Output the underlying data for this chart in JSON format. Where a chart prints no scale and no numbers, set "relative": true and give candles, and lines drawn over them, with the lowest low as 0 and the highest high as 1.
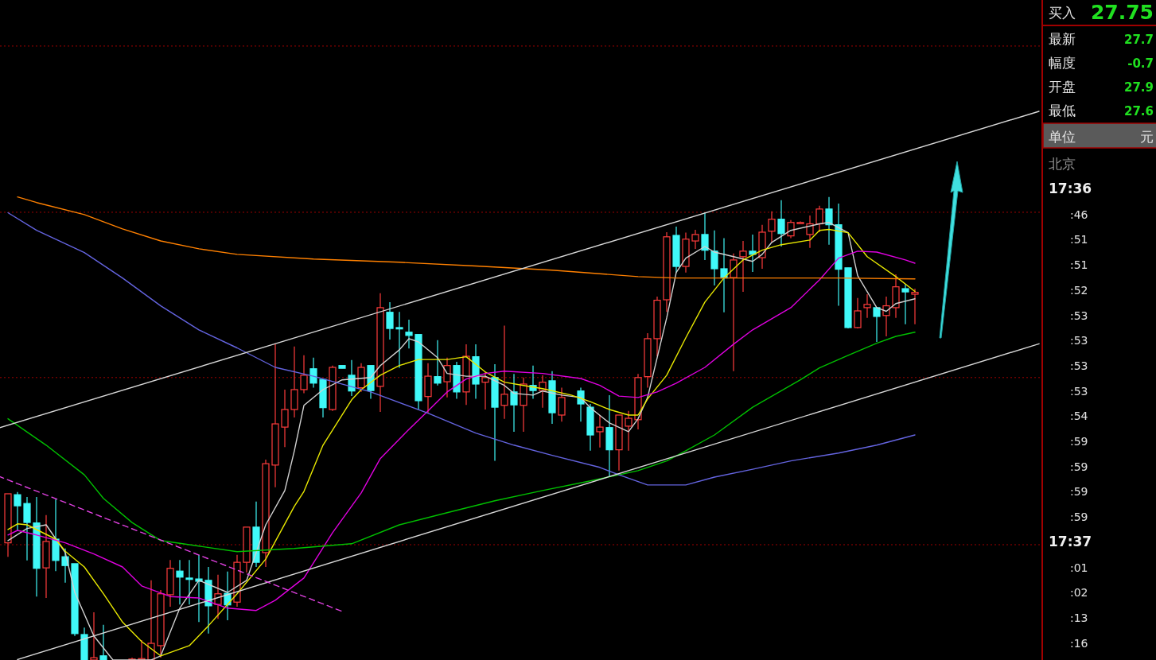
{
  "chart_data": [
    {
      "type": "candlestick",
      "relative": true,
      "categories": [
        null,
        null,
        null,
        null,
        null,
        null,
        null,
        null,
        null,
        null,
        null,
        null,
        null,
        null,
        null,
        null,
        null,
        null,
        null,
        null,
        null,
        null,
        null,
        null,
        null,
        null,
        null,
        null,
        null,
        null,
        null,
        null,
        null,
        null,
        null,
        null,
        null,
        null,
        null,
        null,
        null,
        null,
        null,
        null,
        null,
        null,
        null,
        null,
        null,
        null,
        null,
        null,
        null,
        null,
        null,
        null,
        null,
        null,
        null,
        null,
        null,
        null,
        null,
        null,
        null,
        null,
        null,
        null,
        null,
        null,
        null,
        null,
        null,
        null,
        null,
        null,
        null,
        null,
        null,
        null,
        null,
        null,
        null,
        null,
        null,
        null,
        null,
        null,
        null,
        null,
        null,
        null,
        null,
        null,
        null,
        null,
        null,
        null,
        null,
        null,
        null,
        null,
        null,
        null,
        null,
        null,
        null,
        null,
        null,
        null
      ],
      "ohlc": [
        null,
        [
          0.253,
          0.359,
          0.223,
          0.359
        ],
        [
          0.357,
          0.363,
          0.28,
          0.333
        ],
        [
          0.338,
          0.352,
          0.215,
          0.297
        ],
        [
          0.296,
          0.352,
          0.137,
          0.198
        ],
        [
          0.199,
          0.313,
          0.134,
          0.256
        ],
        [
          0.261,
          0.347,
          0.192,
          0.215
        ],
        [
          0.223,
          0.241,
          0.167,
          0.204
        ],
        [
          0.208,
          0.208,
          0.052,
          0.057
        ],
        [
          0.055,
          0.07,
          0,
          0
        ],
        [
          0,
          0.103,
          0,
          0.005
        ],
        [
          0.009,
          0.076,
          0,
          0
        ],
        null,
        null,
        [
          0,
          0.005,
          0,
          0.002
        ],
        [
          0,
          0.043,
          0,
          0.003
        ],
        [
          0,
          0.172,
          0,
          0.036
        ],
        [
          0.031,
          0.151,
          0.005,
          0.143
        ],
        [
          0.141,
          0.216,
          0.115,
          0.198
        ],
        [
          0.192,
          0.216,
          0.12,
          0.179
        ],
        [
          0.177,
          0.216,
          0.12,
          0.174
        ],
        [
          0.175,
          0.227,
          0.082,
          0.17
        ],
        [
          0.172,
          0.201,
          0.057,
          0.117
        ],
        [
          0.12,
          0.184,
          0.089,
          0.143
        ],
        [
          0.144,
          0.191,
          0.086,
          0.119
        ],
        [
          0.125,
          0.227,
          0.115,
          0.211
        ],
        [
          0.211,
          0.287,
          0.189,
          0.287
        ],
        [
          0.287,
          0.342,
          0.201,
          0.211
        ],
        [
          0.232,
          0.433,
          0.201,
          0.424
        ],
        [
          0.421,
          0.682,
          0.373,
          0.51
        ],
        [
          0.503,
          0.584,
          0.46,
          0.541
        ],
        [
          0.541,
          0.677,
          0.524,
          0.584
        ],
        [
          0.584,
          0.658,
          0.576,
          0.615
        ],
        [
          0.629,
          0.653,
          0.588,
          0.598
        ],
        [
          0.606,
          0.606,
          0.524,
          0.545
        ],
        [
          0.541,
          0.636,
          0.538,
          0.632
        ],
        [
          0.636,
          0.636,
          0.63,
          0.63
        ],
        [
          0.615,
          0.648,
          0.57,
          0.581
        ],
        [
          0.588,
          0.641,
          0.579,
          0.632
        ],
        [
          0.636,
          0.636,
          0.564,
          0.582
        ],
        [
          0.591,
          0.792,
          0.536,
          0.761
        ],
        [
          0.751,
          0.773,
          0.692,
          0.716
        ],
        [
          0.718,
          0.752,
          0.631,
          0.715
        ],
        [
          0.708,
          0.735,
          0.673,
          0.701
        ],
        [
          0.703,
          0.703,
          0.541,
          0.56
        ],
        [
          0.569,
          0.641,
          0.533,
          0.613
        ],
        [
          0.612,
          0.691,
          0.593,
          0.598
        ],
        [
          0.601,
          0.653,
          0.567,
          0.636
        ],
        [
          0.636,
          0.644,
          0.564,
          0.579
        ],
        [
          0.579,
          0.682,
          0.551,
          0.656
        ],
        [
          0.655,
          0.682,
          0.564,
          0.596
        ],
        [
          0.6,
          0.622,
          0.541,
          0.61
        ],
        [
          0.61,
          0.639,
          0.43,
          0.546
        ],
        [
          0.55,
          0.722,
          0.521,
          0.574
        ],
        [
          0.579,
          0.618,
          0.493,
          0.551
        ],
        [
          0.55,
          0.61,
          0.493,
          0.596
        ],
        [
          0.593,
          0.636,
          0.564,
          0.582
        ],
        [
          0.582,
          0.615,
          0.545,
          0.6
        ],
        [
          0.603,
          0.624,
          0.51,
          0.534
        ],
        [
          0.529,
          0.588,
          0.515,
          0.567
        ],
        null,
        [
          0.581,
          0.588,
          0.515,
          0.553
        ],
        [
          0.546,
          0.553,
          0.452,
          0.486
        ],
        [
          0.493,
          0.529,
          0.459,
          0.503
        ],
        [
          0.502,
          0.572,
          0.395,
          0.454
        ],
        [
          0.454,
          0.529,
          0.409,
          0.529
        ],
        [
          0.505,
          0.538,
          0.452,
          0.522
        ],
        [
          0.519,
          0.618,
          0.498,
          0.61
        ],
        [
          0.612,
          0.706,
          0.588,
          0.694
        ],
        [
          0.694,
          0.785,
          0.656,
          0.777
        ],
        [
          0.778,
          0.924,
          0.752,
          0.914
        ],
        [
          0.917,
          0.936,
          0.837,
          0.85
        ],
        [
          0.85,
          0.923,
          0.837,
          0.909
        ],
        [
          0.905,
          0.929,
          0.888,
          0.919
        ],
        [
          0.919,
          0.967,
          0.864,
          0.885
        ],
        [
          0.883,
          0.928,
          0.809,
          0.845
        ],
        [
          0.845,
          0.911,
          0.751,
          0.825
        ],
        [
          0.826,
          0.878,
          0.624,
          0.864
        ],
        [
          0.871,
          0.905,
          0.795,
          0.883
        ],
        [
          0.883,
          0.919,
          0.838,
          0.876
        ],
        [
          0.869,
          0.94,
          0.845,
          0.924
        ],
        [
          0.926,
          0.969,
          0.902,
          0.952
        ],
        [
          0.952,
          0.993,
          0.893,
          0.921
        ],
        [
          0.916,
          0.95,
          0.911,
          0.945
        ],
        [
          0.945,
          0.947,
          0.943,
          0.945
        ],
        [
          0.919,
          0.96,
          0.89,
          0.942
        ],
        [
          0.942,
          0.981,
          0.924,
          0.974
        ],
        [
          0.974,
          1,
          0.897,
          0.94
        ],
        [
          0.94,
          0.986,
          0.765,
          0.844
        ],
        [
          0.847,
          0.847,
          0.716,
          0.718
        ],
        [
          0.718,
          0.782,
          0.716,
          0.754
        ],
        [
          0.761,
          0.79,
          0.739,
          0.768
        ],
        [
          0.761,
          0.761,
          0.687,
          0.742
        ],
        [
          0.744,
          0.785,
          0.699,
          0.765
        ],
        [
          0.761,
          0.833,
          0.739,
          0.806
        ],
        [
          0.802,
          0.811,
          0.725,
          0.795
        ],
        [
          0.79,
          0.802,
          0.725,
          0.794
        ],
        null,
        null,
        null,
        null,
        null,
        null,
        null,
        null,
        null,
        null,
        null,
        null,
        null
      ],
      "series": [
        {
          "type": "line",
          "color": "#d0d0d0",
          "values": [
            null,
            0.258,
            null,
            0.284,
            null,
            0.292,
            null,
            0.232,
            0.146,
            null,
            0.052,
            null,
            0,
            0,
            0,
            0,
            0,
            0.009,
            null,
            0.112,
            null,
            0.172,
            null,
            null,
            0.146,
            null,
            0.172,
            null,
            0.292,
            null,
            0.366,
            0.452,
            0.55,
            null,
            0.584,
            null,
            0.605,
            null,
            null,
            0.61,
            0.636,
            null,
            0.67,
            0.694,
            0.687,
            null,
            0.653,
            0.619,
            null,
            0.613,
            null,
            0.613,
            null,
            0.593,
            0.576,
            null,
            0.572,
            0.581,
            null,
            0.572,
            null,
            0.567,
            0.545,
            null,
            0.512,
            null,
            0.493,
            0.521,
            0.567,
            0.653,
            0.739,
            0.837,
            0.868,
            null,
            0.893,
            0.881,
            null,
            0.871,
            null,
            0.861,
            0.876,
            0.902,
            null,
            0.928,
            null,
            null,
            0.942,
            0.945,
            null,
            0.923,
            0.83,
            null,
            0.761,
            0.753,
            0.77,
            null,
            0.78,
            null,
            null,
            null,
            null,
            null,
            null,
            null,
            null,
            null,
            null,
            null,
            null,
            null
          ]
        },
        {
          "type": "line",
          "color": "#e8e800",
          "values": [
            null,
            0.282,
            0.294,
            0.292,
            null,
            null,
            0.261,
            0.235,
            null,
            0.201,
            null,
            0.143,
            null,
            0.082,
            null,
            0.04,
            null,
            0.009,
            null,
            null,
            0.031,
            null,
            0.074,
            null,
            null,
            0.143,
            null,
            null,
            0.218,
            null,
            null,
            0.332,
            0.364,
            null,
            0.464,
            null,
            null,
            0.562,
            0.584,
            null,
            0.615,
            null,
            0.636,
            null,
            0.649,
            null,
            null,
            0.649,
            null,
            0.655,
            null,
            0.622,
            null,
            0.6,
            null,
            0.593,
            null,
            0.586,
            null,
            null,
            0.572,
            null,
            0.558,
            null,
            0.541,
            null,
            0.529,
            0.529,
            0.564,
            null,
            0.615,
            null,
            0.696,
            null,
            0.773,
            null,
            0.825,
            null,
            0.864,
            null,
            0.885,
            null,
            0.897,
            null,
            null,
            0.907,
            0.928,
            0.93,
            null,
            0.923,
            null,
            0.871,
            null,
            null,
            0.828,
            null,
            0.796,
            null,
            null,
            null,
            null,
            null,
            null,
            null,
            null,
            null,
            null,
            null,
            null,
            null
          ]
        },
        {
          "type": "line",
          "color": "#e000e0",
          "values": [
            null,
            0.27,
            0.28,
            null,
            0.27,
            null,
            null,
            0.253,
            null,
            null,
            0.229,
            null,
            null,
            0.201,
            null,
            0.16,
            null,
            null,
            0.137,
            null,
            null,
            0.134,
            null,
            null,
            0.112,
            null,
            null,
            0.107,
            null,
            0.129,
            null,
            null,
            0.177,
            null,
            null,
            0.275,
            null,
            null,
            0.361,
            null,
            0.435,
            null,
            null,
            0.498,
            null,
            0.538,
            null,
            0.579,
            null,
            0.607,
            null,
            0.619,
            null,
            0.624,
            null,
            null,
            null,
            0.619,
            null,
            null,
            null,
            0.608,
            null,
            0.593,
            null,
            0.57,
            null,
            0.567,
            null,
            0.579,
            null,
            0.598,
            null,
            null,
            0.632,
            null,
            null,
            0.682,
            null,
            0.713,
            null,
            null,
            null,
            0.761,
            null,
            null,
            0.821,
            null,
            0.868,
            null,
            0.883,
            null,
            0.881,
            null,
            null,
            0.864,
            0.857,
            null,
            null,
            null,
            null,
            null,
            null,
            null,
            null,
            null,
            null,
            null,
            null,
            null
          ]
        },
        {
          "type": "line",
          "color": "#00c000",
          "values": [
            null,
            0.521,
            null,
            null,
            null,
            0.464,
            null,
            null,
            null,
            0.4,
            null,
            0.349,
            null,
            null,
            0.297,
            null,
            null,
            0.258,
            null,
            null,
            null,
            0.246,
            null,
            null,
            null,
            0.234,
            null,
            null,
            null,
            null,
            null,
            0.241,
            null,
            null,
            null,
            null,
            null,
            0.251,
            null,
            null,
            null,
            null,
            0.292,
            null,
            null,
            null,
            null,
            0.318,
            null,
            null,
            null,
            null,
            0.344,
            null,
            null,
            null,
            null,
            0.366,
            null,
            null,
            null,
            null,
            0.387,
            null,
            null,
            null,
            null,
            0.409,
            null,
            null,
            0.43,
            null,
            0.452,
            null,
            null,
            0.486,
            null,
            null,
            null,
            0.546,
            null,
            null,
            null,
            null,
            0.605,
            null,
            0.631,
            null,
            null,
            0.658,
            null,
            null,
            0.684,
            null,
            0.699,
            null,
            0.708,
            null,
            null,
            null,
            null,
            null,
            null,
            null,
            null,
            null,
            null,
            null,
            null,
            null
          ]
        },
        {
          "type": "line",
          "color": "#6464e0",
          "values": [
            null,
            0.966,
            null,
            null,
            0.928,
            null,
            null,
            null,
            null,
            0.88,
            null,
            null,
            null,
            0.825,
            null,
            null,
            null,
            0.765,
            null,
            null,
            null,
            0.713,
            null,
            null,
            null,
            0.674,
            null,
            null,
            null,
            0.632,
            null,
            null,
            null,
            0.613,
            null,
            null,
            null,
            null,
            null,
            0.579,
            null,
            null,
            null,
            null,
            null,
            0.533,
            null,
            null,
            null,
            null,
            0.49,
            null,
            null,
            null,
            0.464,
            null,
            null,
            null,
            0.442,
            null,
            null,
            null,
            null,
            0.416,
            null,
            0.4,
            null,
            null,
            0.378,
            null,
            null,
            null,
            0.378,
            null,
            null,
            0.395,
            null,
            null,
            null,
            0.412,
            null,
            null,
            null,
            0.43,
            null,
            null,
            null,
            null,
            0.447,
            null,
            null,
            null,
            0.464,
            null,
            null,
            null,
            0.486,
            null,
            null,
            null,
            null,
            null,
            null,
            null,
            null,
            null,
            null,
            null,
            null,
            null
          ]
        },
        {
          "type": "line",
          "color": "#ff8000",
          "values": [
            null,
            null,
            1,
            null,
            0.988,
            null,
            null,
            null,
            null,
            0.962,
            null,
            null,
            null,
            0.931,
            null,
            null,
            null,
            0.905,
            null,
            null,
            null,
            0.888,
            null,
            null,
            null,
            0.876,
            null,
            null,
            null,
            null,
            null,
            null,
            null,
            0.866,
            null,
            null,
            null,
            null,
            null,
            null,
            null,
            null,
            0.859,
            null,
            null,
            null,
            null,
            null,
            null,
            null,
            0.851,
            null,
            null,
            null,
            null,
            null,
            null,
            null,
            0.842,
            null,
            null,
            null,
            null,
            null,
            null,
            null,
            null,
            0.828,
            null,
            null,
            null,
            0.825,
            null,
            null,
            null,
            null,
            null,
            null,
            null,
            0.825,
            null,
            null,
            null,
            null,
            null,
            null,
            null,
            null,
            0.825,
            null,
            null,
            null,
            null,
            null,
            null,
            null,
            0.823,
            null,
            null,
            null,
            null,
            null,
            null,
            null,
            null,
            null,
            null,
            null,
            null,
            null
          ]
        },
        {
          "type": "line",
          "color": "#d8d8d8",
          "values": [
            0.501,
            null,
            null,
            null,
            null,
            null,
            null,
            null,
            null,
            null,
            null,
            null,
            null,
            null,
            null,
            null,
            null,
            null,
            null,
            null,
            null,
            null,
            null,
            null,
            null,
            null,
            null,
            null,
            null,
            null,
            null,
            null,
            null,
            null,
            null,
            null,
            null,
            null,
            null,
            null,
            null,
            null,
            null,
            null,
            null,
            null,
            null,
            null,
            null,
            null,
            null,
            null,
            null,
            null,
            null,
            null,
            null,
            null,
            null,
            null,
            null,
            null,
            null,
            null,
            null,
            null,
            null,
            null,
            null,
            null,
            null,
            null,
            null,
            null,
            null,
            null,
            null,
            null,
            null,
            null,
            null,
            null,
            null,
            null,
            null,
            null,
            null,
            null,
            null,
            null,
            null,
            null,
            null,
            null,
            null,
            null,
            null,
            null,
            null,
            null,
            null,
            null,
            null,
            null,
            null,
            null,
            null,
            null,
            null,
            1.185
          ]
        },
        {
          "type": "line",
          "color": "#d8d8d8",
          "values": [
            null,
            null,
            0.001,
            null,
            null,
            null,
            null,
            null,
            null,
            null,
            null,
            null,
            null,
            null,
            null,
            null,
            null,
            null,
            null,
            null,
            null,
            null,
            null,
            null,
            null,
            null,
            null,
            null,
            null,
            null,
            null,
            null,
            null,
            null,
            null,
            null,
            null,
            null,
            null,
            null,
            null,
            null,
            null,
            null,
            null,
            null,
            null,
            null,
            null,
            null,
            null,
            null,
            null,
            null,
            null,
            null,
            null,
            null,
            null,
            null,
            null,
            null,
            null,
            null,
            null,
            null,
            null,
            null,
            null,
            null,
            null,
            null,
            null,
            null,
            null,
            null,
            null,
            null,
            null,
            null,
            null,
            null,
            null,
            null,
            null,
            null,
            null,
            null,
            null,
            null,
            null,
            null,
            null,
            null,
            null,
            null,
            null,
            null,
            null,
            null,
            null,
            null,
            null,
            null,
            null,
            null,
            null,
            null,
            null,
            0.683
          ]
        },
        {
          "type": "line",
          "color": "#e040e0",
          "line_style": "dashed",
          "values": [
            0.397,
            null,
            null,
            null,
            null,
            null,
            null,
            null,
            null,
            null,
            null,
            null,
            null,
            null,
            null,
            null,
            null,
            null,
            null,
            null,
            null,
            null,
            null,
            null,
            null,
            null,
            null,
            null,
            null,
            null,
            null,
            null,
            null,
            null,
            null,
            null,
            0.105,
            null,
            null,
            null,
            null,
            null,
            null,
            null,
            null,
            null,
            null,
            null,
            null,
            null,
            null,
            null,
            null,
            null,
            null,
            null,
            null,
            null,
            null,
            null,
            null,
            null,
            null,
            null,
            null,
            null,
            null,
            null,
            null,
            null,
            null,
            null,
            null,
            null,
            null,
            null,
            null,
            null,
            null,
            null,
            null,
            null,
            null,
            null,
            null,
            null,
            null,
            null,
            null,
            null,
            null,
            null,
            null,
            null,
            null,
            null,
            null,
            null,
            null,
            null,
            null,
            null,
            null,
            null,
            null,
            null,
            null,
            null,
            null,
            null
          ]
        }
      ],
      "ref_lines": [
        {
          "axis": "y",
          "value": 1.326,
          "color": "#a00000",
          "line_style": "dotted"
        },
        {
          "axis": "y",
          "value": 0.967,
          "color": "#a00000",
          "line_style": "dotted"
        },
        {
          "axis": "y",
          "value": 0.61,
          "color": "#a00000",
          "line_style": "dotted"
        },
        {
          "axis": "y",
          "value": 0.249,
          "color": "#a00000",
          "line_style": "dotted"
        }
      ]
    },
    {
      "type": "other",
      "annotations": [
        "买入",
        "27.75",
        "最新",
        "27.7",
        "幅度",
        "-0.7",
        "开盘",
        "27.9",
        "最低",
        "27.6",
        "单位",
        "元",
        "北京",
        "17:36",
        ":46",
        ":51",
        ":51",
        ":52",
        ":53",
        ":53",
        ":53",
        ":53",
        ":54",
        ":59",
        ":59",
        ":59",
        ":59",
        "17:37",
        ":01",
        ":02",
        ":13",
        ":16"
      ]
    }
  ]
}
